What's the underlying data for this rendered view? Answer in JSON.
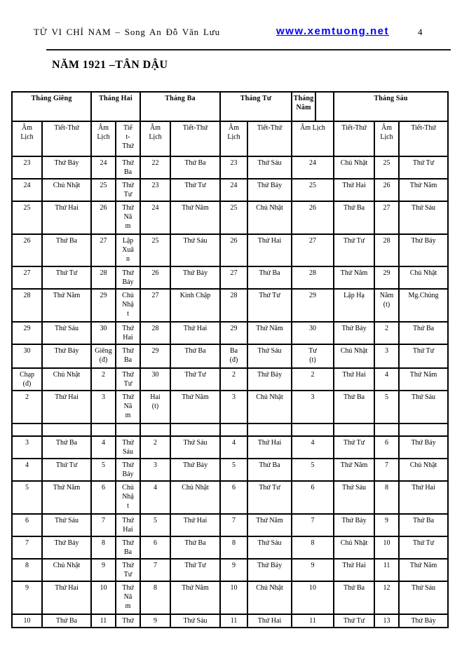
{
  "header": {
    "title": "TỬ VI CHỈ NAM – Song An Đỗ Văn Lưu",
    "link": "www.xemtuong.net",
    "page_number": "4"
  },
  "year_title": "NĂM 1921 –TÂN DẬU",
  "colors": {
    "link_blue": "#0000ff",
    "text": "#000000",
    "border": "#000000",
    "background": "#ffffff"
  },
  "calendar": {
    "month_row": [
      {
        "t": "Tháng Giêng",
        "span": 2
      },
      {
        "t": "Tháng Hai",
        "span": 2
      },
      {
        "t": "Tháng Ba",
        "span": 2
      },
      {
        "t": "Tháng Tư",
        "span": 2
      },
      {
        "t": "Tháng\nNăm",
        "span": 1
      },
      {
        "t": "",
        "span": 1
      },
      {
        "t": "Tháng Sáu",
        "span": 3
      }
    ],
    "subheader_row": [
      {
        "t": "Âm\nLịch"
      },
      {
        "t": "Tiết-Thứ"
      },
      {
        "t": "Âm\nLịch"
      },
      {
        "t": "Tiế\nt-\nThứ"
      },
      {
        "t": "Âm\nLịch"
      },
      {
        "t": "Tiết-Thứ"
      },
      {
        "t": "Âm\nLịch"
      },
      {
        "t": "Tiết-Thứ"
      },
      {
        "t": "Âm Lịch"
      },
      {
        "t": "Tiết-Thứ"
      },
      {
        "t": "Âm\nLịch"
      },
      {
        "t": "Tiết-Thứ"
      }
    ],
    "rows": [
      [
        "23",
        "Thứ Bảy",
        "24",
        "Thứ\nBa",
        "22",
        "Thứ Ba",
        "23",
        "Thứ Sáu",
        "24",
        "Chủ Nhật",
        "25",
        "Thứ Tư"
      ],
      [
        "24",
        "Chủ Nhật",
        "25",
        "Thứ\nTư",
        "23",
        "Thứ Tư",
        "24",
        "Thứ Bảy",
        "25",
        "Thứ Hai",
        "26",
        "Thứ Năm"
      ],
      [
        "25",
        "Thứ Hai",
        "26",
        "Thứ\nNă\nm",
        "24",
        "Thứ Năm",
        "25",
        "Chủ Nhật",
        "26",
        "Thứ Ba",
        "27",
        "Thứ Sáu"
      ],
      [
        "26",
        "Thứ Ba",
        "27",
        "Lập\nXuâ\nn",
        "25",
        "Thứ Sáu",
        "26",
        "Thứ Hai",
        "27",
        "Thứ Tư",
        "28",
        "Thứ Bảy"
      ],
      [
        "27",
        "Thứ Tư",
        "28",
        "Thứ\nBảy",
        "26",
        "Thứ Bảy",
        "27",
        "Thứ Ba",
        "28",
        "Thứ Năm",
        "29",
        "Chủ Nhật"
      ],
      [
        "28",
        "Thứ Năm",
        "29",
        "Chủ\nNhậ\nt",
        "27",
        "Kinh Chập",
        "28",
        "Thứ Tư",
        "29",
        "Lập Hạ",
        {
          "t": "Năm\n(t)",
          "lg": true
        },
        "Mg.Chủng"
      ],
      [
        "29",
        "Thứ Sáu",
        "30",
        "Thứ\nHai",
        "28",
        "Thứ Hai",
        "29",
        "Thứ Năm",
        "30",
        "Thứ Bảy",
        {
          "t": "2",
          "lg": true
        },
        "Thứ Ba"
      ],
      [
        "30",
        "Thứ Bảy",
        "Giêng\n(đ)",
        "Thứ\nBa",
        "29",
        "Thứ Ba",
        {
          "t": "Ba\n(đ)",
          "lg": true
        },
        "Thứ Sáu",
        {
          "t": "Tư\n(t)",
          "lg": true
        },
        "Chủ Nhật",
        {
          "t": "3",
          "lg": true
        },
        "Thứ Tư"
      ],
      [
        "Chạp\n(đ)",
        "Chủ Nhật",
        "2",
        "Thứ\nTư",
        "30",
        "Thứ Tư",
        {
          "t": "2",
          "lg": true
        },
        "Thứ Bảy",
        {
          "t": "2",
          "lg": true
        },
        "Thứ Hai",
        {
          "t": "4",
          "lg": true
        },
        "Thứ Năm"
      ],
      [
        "2",
        "Thứ Hai",
        "3",
        "Thứ\nNă\nm",
        "Hai\n(t)",
        "Thứ Năm",
        {
          "t": "3",
          "lg": true
        },
        "Chủ Nhật",
        {
          "t": "3",
          "lg": true
        },
        "Thứ Ba",
        {
          "t": "5",
          "lg": true
        },
        "Thứ Sáu"
      ],
      [],
      [
        {
          "t": "3",
          "lg": true
        },
        "Thứ Ba",
        {
          "t": "4",
          "lg": true
        },
        "Thứ\nSáu",
        "2",
        "Thứ Sáu",
        {
          "t": "4",
          "lg": true
        },
        "Thứ Hai",
        {
          "t": "4",
          "lg": true
        },
        "Thứ Tư",
        {
          "t": "6",
          "lg": true
        },
        "Thứ Bảy"
      ],
      [
        {
          "t": "4",
          "lg": true
        },
        "Thứ Tư",
        {
          "t": "5",
          "lg": true
        },
        "Thứ\nBảy",
        {
          "t": "3",
          "lg": true
        },
        "Thứ Bảy",
        {
          "t": "5",
          "lg": true
        },
        "Thứ Ba",
        {
          "t": "5",
          "lg": true
        },
        "Thứ Năm",
        {
          "t": "7",
          "lg": true
        },
        "Chủ Nhật"
      ],
      [
        {
          "t": "5",
          "lg": true
        },
        "Thứ Năm",
        {
          "t": "6",
          "lg": true
        },
        "Chủ\nNhậ\nt",
        {
          "t": "4",
          "lg": true
        },
        "Chủ Nhật",
        {
          "t": "6",
          "lg": true
        },
        "Thứ Tư",
        {
          "t": "6",
          "lg": true
        },
        "Thứ Sáu",
        {
          "t": "8",
          "lg": true
        },
        "Thứ Hai"
      ],
      [
        {
          "t": "6",
          "lg": true
        },
        "Thứ Sáu",
        {
          "t": "7",
          "lg": true
        },
        "Thứ\nHai",
        {
          "t": "5",
          "lg": true
        },
        "Thứ Hai",
        {
          "t": "7",
          "lg": true
        },
        "Thứ Năm",
        {
          "t": "7",
          "lg": true
        },
        "Thứ Bảy",
        {
          "t": "9",
          "lg": true
        },
        "Thứ Ba"
      ],
      [
        {
          "t": "7",
          "lg": true
        },
        "Thứ Bảy",
        {
          "t": "8",
          "lg": true
        },
        "Thứ\nBa",
        {
          "t": "6",
          "lg": true
        },
        "Thứ Ba",
        {
          "t": "8",
          "lg": true
        },
        "Thứ Sáu",
        {
          "t": "8",
          "lg": true
        },
        "Chủ Nhật",
        {
          "t": "10",
          "lg": true
        },
        "Thứ Tư"
      ],
      [
        {
          "t": "8",
          "lg": true
        },
        "Chủ Nhật",
        {
          "t": "9",
          "lg": true
        },
        "Thứ\nTư",
        {
          "t": "7",
          "lg": true
        },
        "Thứ Tư",
        {
          "t": "9",
          "lg": true
        },
        "Thứ Bảy",
        {
          "t": "9",
          "lg": true
        },
        "Thứ Hai",
        {
          "t": "11",
          "lg": true
        },
        "Thứ Năm"
      ],
      [
        {
          "t": "9",
          "lg": true
        },
        "Thứ Hai",
        {
          "t": "10",
          "lg": true
        },
        "Thứ\nNă\nm",
        {
          "t": "8",
          "lg": true
        },
        "Thứ Năm",
        {
          "t": "10",
          "lg": true
        },
        "Chủ Nhật",
        {
          "t": "10",
          "lg": true
        },
        "Thứ Ba",
        {
          "t": "12",
          "lg": true
        },
        "Thứ Sáu"
      ],
      [
        {
          "t": "10",
          "lg": true
        },
        "Thứ Ba",
        {
          "t": "11",
          "lg": true
        },
        "Thứ",
        {
          "t": "9",
          "lg": true
        },
        "Thứ Sáu",
        {
          "t": "11",
          "lg": true
        },
        "Thứ Hai",
        {
          "t": "11",
          "lg": true
        },
        "Thứ Tư",
        {
          "t": "13",
          "lg": true
        },
        "Thứ Bảy"
      ]
    ]
  }
}
